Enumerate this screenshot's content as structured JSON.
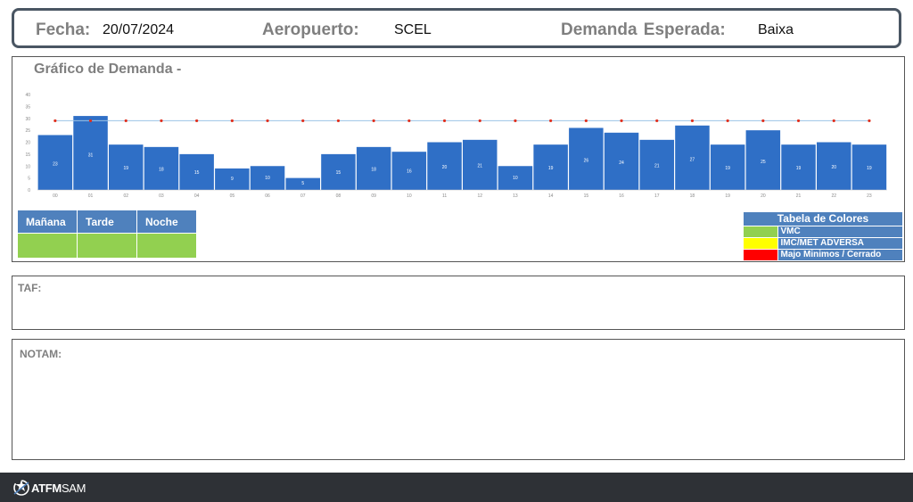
{
  "header": {
    "date_label": "Fecha:",
    "date_value": "20/07/2024",
    "airport_label": "Aeropuerto:",
    "airport_value": "SCEL",
    "demand_label": "Demanda  Esperada:",
    "demand_value": "Baixa"
  },
  "chart": {
    "title": "Gráfico de Demanda  -"
  },
  "chart_data": {
    "type": "bar",
    "title": "Gráfico de Demanda  -",
    "categories": [
      "00",
      "01",
      "02",
      "03",
      "04",
      "05",
      "06",
      "07",
      "08",
      "09",
      "10",
      "11",
      "12",
      "13",
      "14",
      "15",
      "16",
      "17",
      "18",
      "19",
      "20",
      "21",
      "22",
      "23"
    ],
    "values": [
      23,
      31,
      19,
      18,
      15,
      9,
      10,
      5,
      15,
      18,
      16,
      20,
      21,
      10,
      19,
      26,
      24,
      21,
      27,
      19,
      25,
      19,
      20,
      19
    ],
    "capacity_line": 29,
    "yticks": [
      0,
      5,
      10,
      15,
      20,
      25,
      30,
      35,
      40
    ],
    "ylim": [
      0,
      40
    ],
    "bar_color": "#2f6fc6",
    "capacity_line_color": "#9bc2e6",
    "capacity_marker_color": "#e0301e",
    "grid": false,
    "legend": "none"
  },
  "shifts": {
    "headers": [
      "Mañana",
      "Tarde",
      "Noche"
    ],
    "status_color": "#92d050"
  },
  "color_table": {
    "title": "Tabela de Colores",
    "items": [
      {
        "label": "VMC",
        "color": "#92d050"
      },
      {
        "label": "IMC/MET ADVERSA",
        "color": "#ffff00"
      },
      {
        "label": "Majo Minimos / Cerrado",
        "color": "#ff0000"
      }
    ]
  },
  "taf": {
    "label": "TAF:"
  },
  "notam": {
    "label": "NOTAM:"
  },
  "footer": {
    "brand_bold": "ATFM",
    "brand_rest": "SAM",
    "logo_icon": "star-airplane-icon"
  }
}
